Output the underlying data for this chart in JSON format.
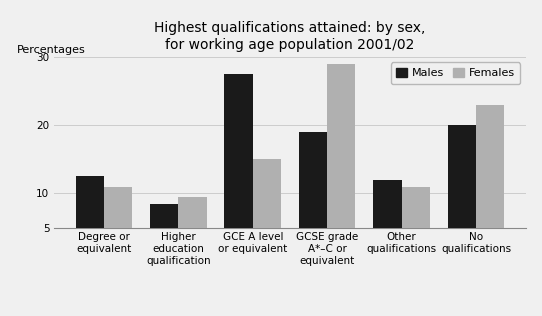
{
  "title": "Highest qualifications attained: by sex,\nfor working age population 2001/02",
  "ylabel": "Percentages",
  "categories": [
    "Degree or\nequivalent",
    "Higher\neducation\nqualification",
    "GCE A level\nor equivalent",
    "GCSE grade\nA*–C or\nequivalent",
    "Other\nqualifications",
    "No\nqualifications"
  ],
  "males": [
    12.5,
    8.5,
    27.5,
    19.0,
    12.0,
    20.0
  ],
  "females": [
    11.0,
    9.5,
    15.0,
    29.0,
    11.0,
    23.0
  ],
  "male_color": "#1a1a1a",
  "female_color": "#b0b0b0",
  "ylim": [
    5,
    30
  ],
  "yticks": [
    5,
    10,
    20,
    30
  ],
  "bar_width": 0.38,
  "background_color": "#f0f0f0",
  "legend_labels": [
    "Males",
    "Females"
  ],
  "title_fontsize": 10,
  "ylabel_fontsize": 8,
  "tick_fontsize": 7.5,
  "legend_fontsize": 8
}
